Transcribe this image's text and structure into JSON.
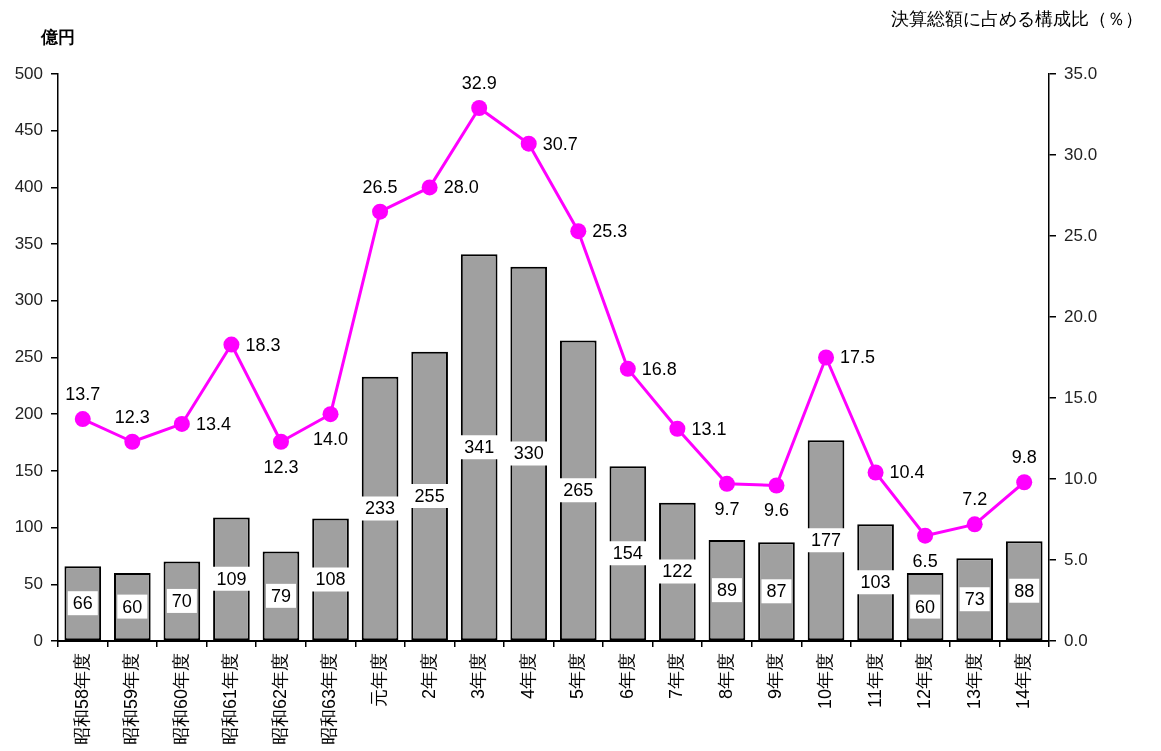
{
  "chart_data": {
    "type": "bar",
    "ylabel": "億円",
    "y2label": "決算総額に占める構成比（％）",
    "categories": [
      "昭和58年度",
      "昭和59年度",
      "昭和60年度",
      "昭和61年度",
      "昭和62年度",
      "昭和63年度",
      "元年度",
      "2年度",
      "3年度",
      "4年度",
      "5年度",
      "6年度",
      "7年度",
      "8年度",
      "9年度",
      "10年度",
      "11年度",
      "12年度",
      "13年度",
      "14年度"
    ],
    "series": [
      {
        "color": "#a0a0a0",
        "values": [
          66,
          60,
          70,
          109,
          79,
          108,
          233,
          255,
          341,
          330,
          265,
          154,
          122,
          89,
          87,
          177,
          103,
          60,
          73,
          88
        ],
        "value_labels": [
          "66",
          "60",
          "70",
          "109",
          "79",
          "108",
          "233",
          "255",
          "341",
          "330",
          "265",
          "154",
          "122",
          "89",
          "87",
          "177",
          "103",
          "60",
          "73",
          "88"
        ]
      },
      {
        "type": "line",
        "axis": "y2",
        "color": "#ff00ff",
        "marker": "circle",
        "line_style": "solid",
        "values": [
          13.7,
          12.3,
          13.4,
          18.3,
          12.3,
          14.0,
          26.5,
          28.0,
          32.9,
          30.7,
          25.3,
          16.8,
          13.1,
          9.7,
          9.6,
          17.5,
          10.4,
          6.5,
          7.2,
          9.8
        ],
        "value_labels": [
          "13.7",
          "12.3",
          "13.4",
          "18.3",
          "12.3",
          "14.0",
          "26.5",
          "28.0",
          "32.9",
          "30.7",
          "25.3",
          "16.8",
          "13.1",
          "9.7",
          "9.6",
          "17.5",
          "10.4",
          "6.5",
          "7.2",
          "9.8"
        ]
      }
    ],
    "ylim": [
      0,
      500
    ],
    "yticks": [
      0,
      50,
      100,
      150,
      200,
      250,
      300,
      350,
      400,
      450,
      500
    ],
    "y2lim": [
      0,
      35
    ],
    "y2ticks": [
      {
        "value": 0,
        "label": "0.0"
      },
      {
        "value": 5,
        "label": "5.0"
      },
      {
        "value": 10,
        "label": "10.0"
      },
      {
        "value": 15,
        "label": "15.0"
      },
      {
        "value": 20,
        "label": "20.0"
      },
      {
        "value": 25,
        "label": "25.0"
      },
      {
        "value": 30,
        "label": "30.0"
      },
      {
        "value": 35,
        "label": "35.0"
      }
    ]
  }
}
